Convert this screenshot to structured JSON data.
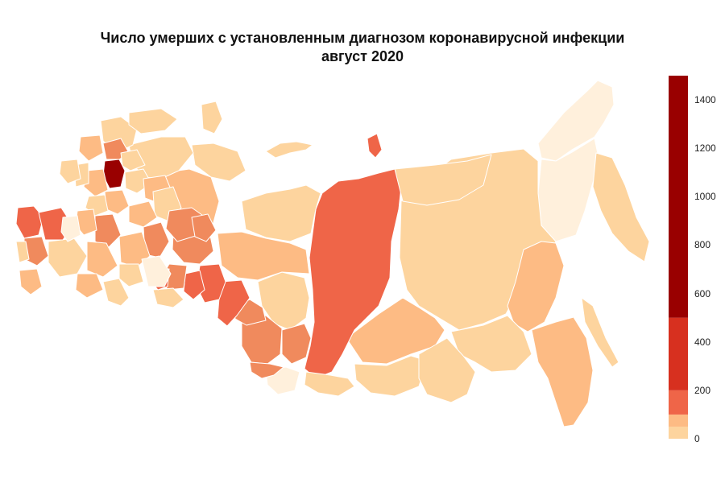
{
  "title": {
    "line1": "Число умерших с установленным диагнозом коронавирусной инфекции",
    "line2": "август 2020"
  },
  "legend": {
    "min": 0,
    "max": 1500,
    "ticks": [
      "0",
      "200",
      "400",
      "600",
      "800",
      "1000",
      "1200",
      "1400"
    ],
    "bins": [
      {
        "from": 0,
        "to": 50,
        "color": "#fdd49e"
      },
      {
        "from": 50,
        "to": 100,
        "color": "#fdbb84"
      },
      {
        "from": 100,
        "to": 200,
        "color": "#ef6548"
      },
      {
        "from": 200,
        "to": 500,
        "color": "#d7301f"
      },
      {
        "from": 500,
        "to": 1500,
        "color": "#990000"
      }
    ]
  },
  "colors": {
    "very_low": "#fff0dc",
    "low": "#fdd49e",
    "mid": "#fdbb84",
    "high": "#f08a5d",
    "higher": "#ef6548",
    "top": "#990000"
  }
}
